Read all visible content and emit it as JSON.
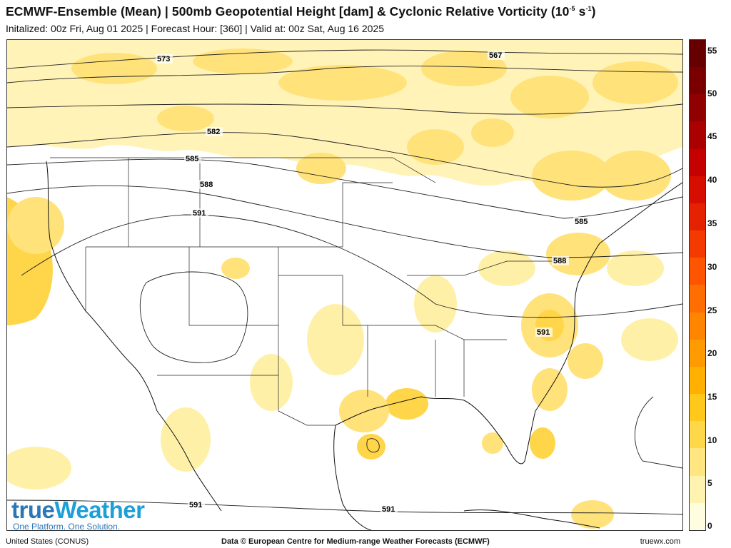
{
  "header": {
    "title_main": "ECMWF-Ensemble (Mean) | 500mb Geopotential Height [dam] & Cyclonic Relative Vorticity (10",
    "title_sup1": "-5",
    "title_mid": " s",
    "title_sup2": "-1",
    "title_end": ")",
    "subtitle": "Initalized: 00z Fri, Aug 01 2025  |  Forecast Hour: [360]  |  Valid at: 00z Sat, Aug 16 2025"
  },
  "map": {
    "region": "United States (CONUS)",
    "contour_labels": [
      {
        "label": "573",
        "pos": "nw"
      },
      {
        "label": "567",
        "pos": "ne"
      },
      {
        "label": "582",
        "pos": "north-central"
      },
      {
        "label": "585",
        "pos": "nw"
      },
      {
        "label": "588",
        "pos": "nw"
      },
      {
        "label": "591",
        "pos": "west"
      },
      {
        "label": "585",
        "pos": "northeast"
      },
      {
        "label": "588",
        "pos": "northeast"
      },
      {
        "label": "591",
        "pos": "carolinas"
      },
      {
        "label": "591",
        "pos": "southwest"
      },
      {
        "label": "591",
        "pos": "gulf"
      }
    ],
    "colors": {
      "vort_light": "#fff0a8",
      "vort_mid": "#ffe27a",
      "vort_strong": "#ffd54a",
      "coast": "#111111",
      "contour": "#222222"
    }
  },
  "colorbar": {
    "ticks": [
      "55",
      "50",
      "45",
      "40",
      "35",
      "30",
      "25",
      "20",
      "15",
      "10",
      "5",
      "0"
    ],
    "colors": [
      "#fffde0",
      "#fff3b0",
      "#ffe680",
      "#ffd84a",
      "#ffc81a",
      "#ffb000",
      "#ff9a00",
      "#ff8400",
      "#ff6e00",
      "#ff5500",
      "#f43a00",
      "#e52200",
      "#d60e00",
      "#c40000",
      "#ab0000",
      "#900000",
      "#7a0000",
      "#660000"
    ]
  },
  "logo": {
    "brand_true": "true",
    "brand_weather": "Weather",
    "tagline": "One Platform. One Solution."
  },
  "footer": {
    "left": "United States (CONUS)",
    "center": "Data © European Centre for Medium-range Weather Forecasts (ECMWF)",
    "right": "truewx.com"
  }
}
